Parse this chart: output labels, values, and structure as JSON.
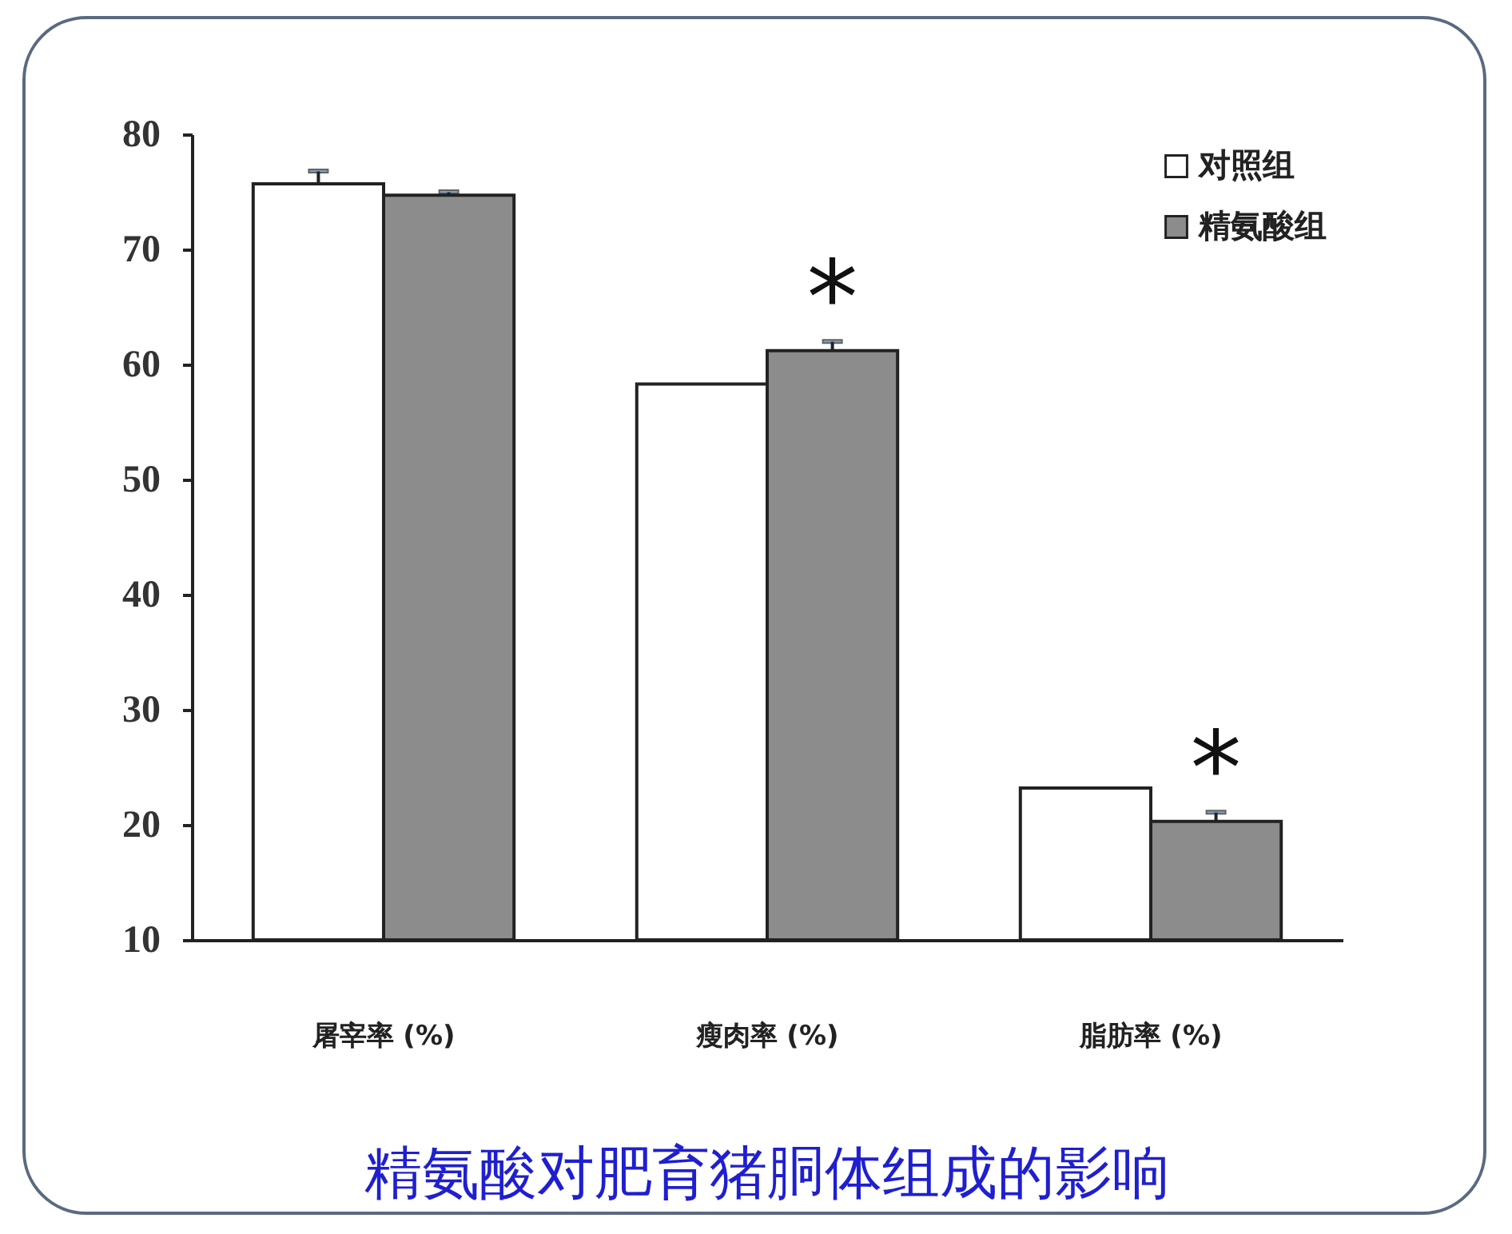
{
  "chart_data": {
    "type": "bar",
    "title": "精氨酸对肥育猪胴体组成的影响",
    "categories": [
      "屠宰率 (%)",
      "瘦肉率 (%)",
      "脂肪率 (%)"
    ],
    "series": [
      {
        "name": "对照组",
        "color": "#ffffff",
        "values": [
          75.7,
          58.3,
          23.2
        ],
        "errors": [
          1.1,
          null,
          null
        ]
      },
      {
        "name": "精氨酸组",
        "color": "#8c8c8c",
        "values": [
          74.7,
          61.2,
          20.3
        ],
        "errors": [
          0.3,
          0.8,
          0.8
        ]
      }
    ],
    "ylim": [
      10,
      80
    ],
    "yticks": [
      10,
      20,
      30,
      40,
      50,
      60,
      70,
      80
    ],
    "grid": false,
    "legend": "top right",
    "annotations": [
      {
        "text": "*",
        "x": "瘦肉率 (%)",
        "y": 61.2
      },
      {
        "text": "*",
        "x": "脂肪率 (%)",
        "y": 20.3
      }
    ]
  }
}
